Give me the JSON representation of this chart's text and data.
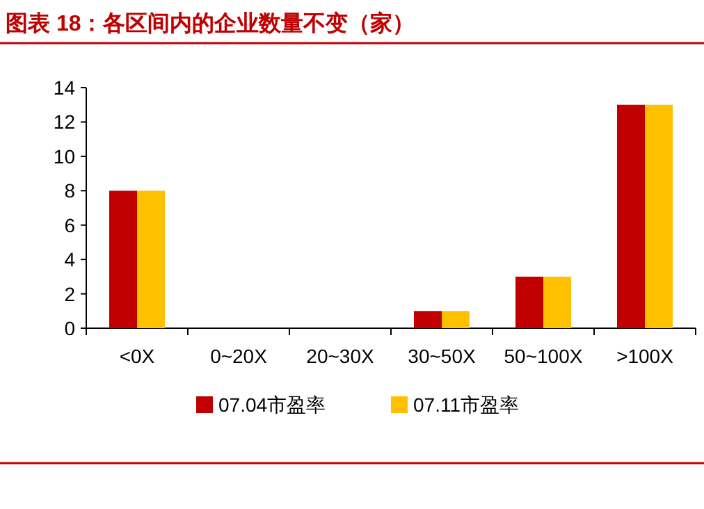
{
  "chart_data": {
    "type": "bar",
    "title": "图表 18：各区间内的企业数量不变（家）",
    "categories": [
      "<0X",
      "0~20X",
      "20~30X",
      "30~50X",
      "50~100X",
      ">100X"
    ],
    "series": [
      {
        "name": "07.04市盈率",
        "color": "#c00000",
        "values": [
          8,
          0,
          0,
          1,
          3,
          13
        ]
      },
      {
        "name": "07.11市盈率",
        "color": "#ffc000",
        "values": [
          8,
          0,
          0,
          1,
          3,
          13
        ]
      }
    ],
    "ylim": [
      0,
      14
    ],
    "yticks": [
      0,
      2,
      4,
      6,
      8,
      10,
      12,
      14
    ],
    "grid": false,
    "legend": "bottom"
  }
}
